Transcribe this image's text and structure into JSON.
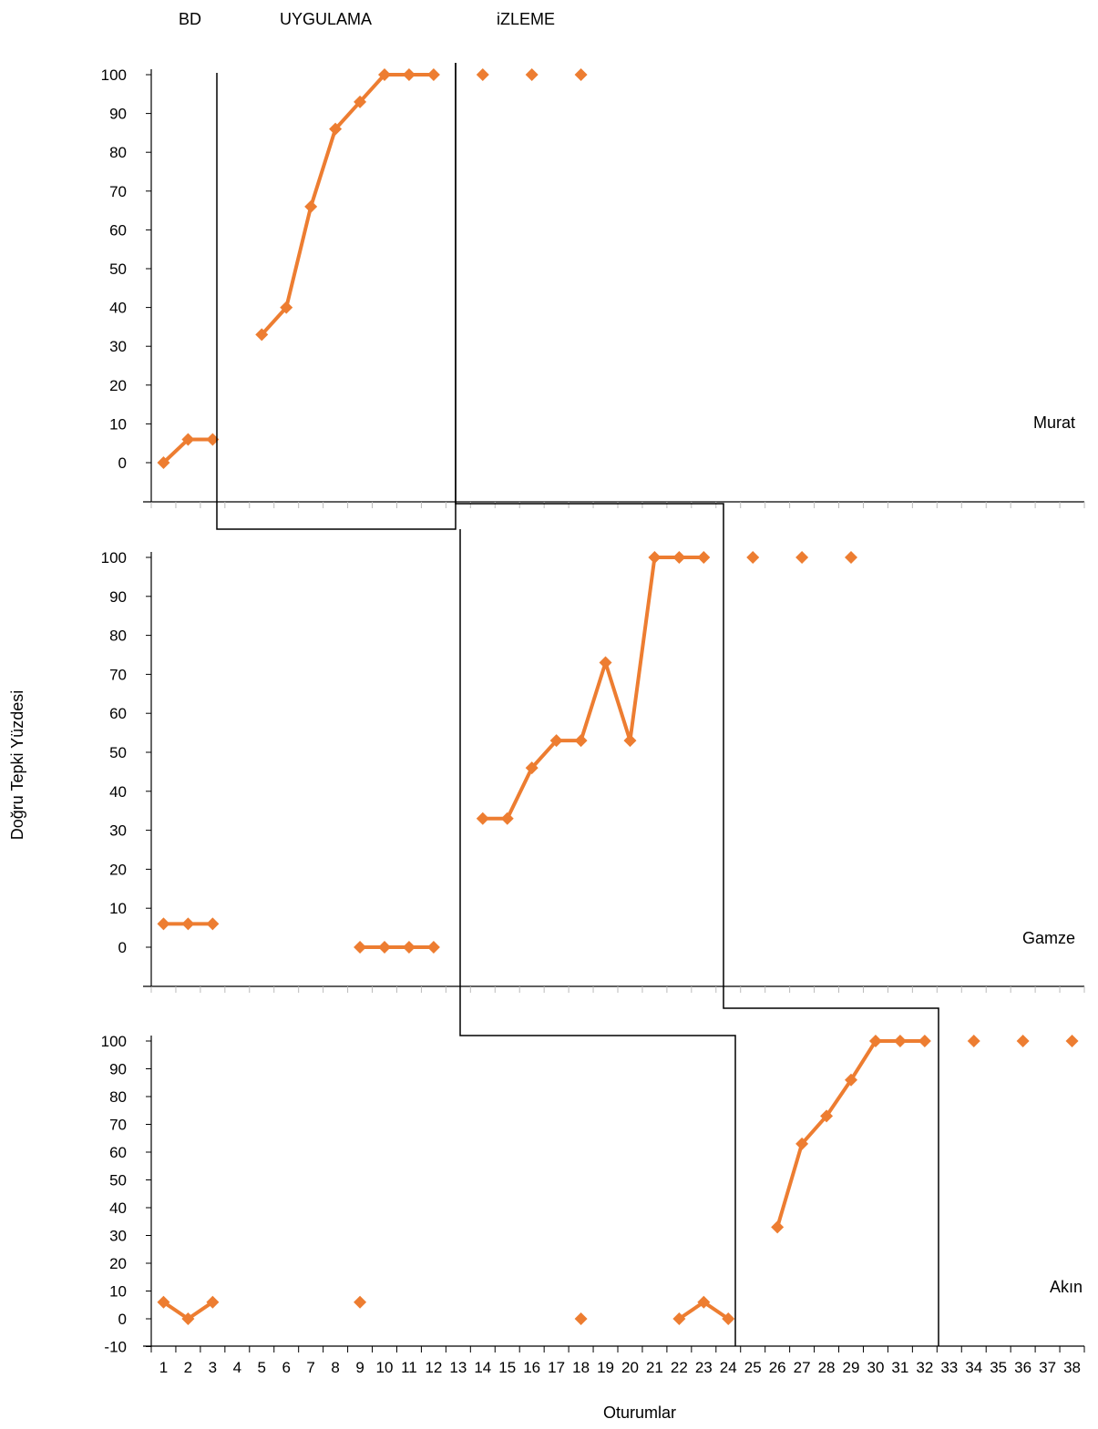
{
  "chart_data": {
    "type": "line",
    "ylabel": "Doğru Tepki Yüzdesi",
    "xlabel": "Oturumlar",
    "phase_labels": [
      "BD",
      "UYGULAMA",
      "iZLEME"
    ],
    "x_ticks": [
      "1",
      "2",
      "3",
      "4",
      "5",
      "6",
      "7",
      "8",
      "9",
      "10",
      "11",
      "12",
      "13",
      "14",
      "15",
      "16",
      "17",
      "18",
      "19",
      "20",
      "21",
      "22",
      "23",
      "24",
      "25",
      "26",
      "27",
      "28",
      "29",
      "30",
      "31",
      "32",
      "33",
      "34",
      "35",
      "36",
      "37",
      "38"
    ],
    "color": "#ED7D31",
    "panels": [
      {
        "name": "Murat",
        "ylim": [
          -10,
          100
        ],
        "yticks": [
          "0",
          "10",
          "20",
          "30",
          "40",
          "50",
          "60",
          "70",
          "80",
          "90",
          "100"
        ],
        "segments": [
          {
            "x": [
              1,
              2,
              3
            ],
            "y": [
              0,
              6,
              6
            ]
          },
          {
            "x": [
              5,
              6,
              7,
              8,
              9,
              10,
              11,
              12
            ],
            "y": [
              33,
              40,
              66,
              86,
              93,
              100,
              100,
              100
            ]
          }
        ],
        "points": [
          {
            "x": 14,
            "y": 100
          },
          {
            "x": 16,
            "y": 100
          },
          {
            "x": 18,
            "y": 100
          }
        ]
      },
      {
        "name": "Gamze",
        "ylim": [
          -10,
          100
        ],
        "yticks": [
          "0",
          "10",
          "20",
          "30",
          "40",
          "50",
          "60",
          "70",
          "80",
          "90",
          "100"
        ],
        "segments": [
          {
            "x": [
              1,
              2,
              3
            ],
            "y": [
              6,
              6,
              6
            ]
          },
          {
            "x": [
              9,
              10,
              11,
              12
            ],
            "y": [
              0,
              0,
              0,
              0
            ]
          },
          {
            "x": [
              14,
              15,
              16,
              17,
              18,
              19,
              20,
              21,
              22,
              23
            ],
            "y": [
              33,
              33,
              46,
              53,
              53,
              73,
              53,
              100,
              100,
              100
            ]
          }
        ],
        "points": [
          {
            "x": 25,
            "y": 100
          },
          {
            "x": 27,
            "y": 100
          },
          {
            "x": 29,
            "y": 100
          }
        ]
      },
      {
        "name": "Akın",
        "ylim": [
          -10,
          100
        ],
        "yticks": [
          "-10",
          "0",
          "10",
          "20",
          "30",
          "40",
          "50",
          "60",
          "70",
          "80",
          "90",
          "100"
        ],
        "segments": [
          {
            "x": [
              1,
              2,
              3
            ],
            "y": [
              6,
              0,
              6
            ]
          },
          {
            "x": [
              22,
              23,
              24
            ],
            "y": [
              0,
              6,
              0
            ]
          },
          {
            "x": [
              26,
              27,
              28,
              29,
              30,
              31,
              32
            ],
            "y": [
              33,
              63,
              73,
              86,
              100,
              100,
              100
            ]
          }
        ],
        "points": [
          {
            "x": 9,
            "y": 6
          },
          {
            "x": 18,
            "y": 0
          },
          {
            "x": 34,
            "y": 100
          },
          {
            "x": 36,
            "y": 100
          },
          {
            "x": 38,
            "y": 100
          }
        ]
      }
    ]
  }
}
